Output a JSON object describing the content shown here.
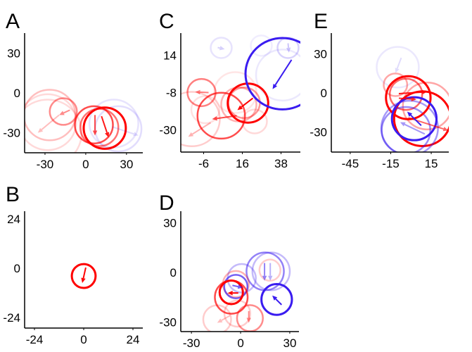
{
  "colors": {
    "red": "#ff0000",
    "blue": "#3a1cf0"
  },
  "chart_data": [
    {
      "type": "scatter",
      "label": "A",
      "xlim": [
        -45,
        42
      ],
      "ylim": [
        -45,
        45
      ],
      "xticks": [
        -30,
        0,
        30
      ],
      "yticks": [
        30,
        0,
        -30
      ],
      "circles": [
        {
          "x": -28,
          "y": -30,
          "r": 25,
          "c": "red",
          "a": 0.15
        },
        {
          "x": -26.6,
          "y": -16.6,
          "r": 19,
          "c": "red",
          "a": 0.25
        },
        {
          "x": -28,
          "y": -22,
          "r": 21,
          "c": "red",
          "a": 0.15
        },
        {
          "x": -16.5,
          "y": -14,
          "r": 10,
          "c": "red",
          "a": 0.45
        },
        {
          "x": 20.7,
          "y": -23,
          "r": 18,
          "c": "blue",
          "a": 0.12
        },
        {
          "x": 24,
          "y": -27,
          "r": 17,
          "c": "blue",
          "a": 0.15
        },
        {
          "x": 6,
          "y": -24,
          "r": 14,
          "c": "red",
          "a": 0.7
        },
        {
          "x": 10,
          "y": -26,
          "r": 14,
          "c": "red",
          "a": 0.55
        },
        {
          "x": 14,
          "y": -26.5,
          "r": 15.5,
          "c": "red",
          "a": 1
        }
      ],
      "arrows": [
        {
          "x1": 6.8,
          "y1": -16.6,
          "x2": 6.8,
          "y2": -32,
          "c": "red",
          "a": 0.7
        },
        {
          "x1": 11.6,
          "y1": -17.5,
          "x2": 16.8,
          "y2": -33.4,
          "c": "red",
          "a": 0.9
        },
        {
          "x1": -11.7,
          "y1": -12.9,
          "x2": -19.6,
          "y2": -16.6,
          "c": "red",
          "a": 0.45
        },
        {
          "x1": -19.6,
          "y1": -16.6,
          "x2": -35.3,
          "y2": -30,
          "c": "red",
          "a": 0.25
        },
        {
          "x1": 19.6,
          "y1": -25.5,
          "x2": 38.8,
          "y2": -32,
          "c": "blue",
          "a": 0.15
        }
      ]
    },
    {
      "type": "scatter",
      "label": "C",
      "xlim": [
        -19,
        49
      ],
      "ylim": [
        -43,
        27
      ],
      "xticks": [
        -6,
        16,
        38
      ],
      "yticks": [
        14,
        -8,
        -30
      ],
      "circles": [
        {
          "x": 4,
          "y": 18.3,
          "r": 6,
          "c": "blue",
          "a": 0.12
        },
        {
          "x": 26.8,
          "y": 19.6,
          "r": 6,
          "c": "blue",
          "a": 0.08
        },
        {
          "x": 42,
          "y": 18.3,
          "r": 6,
          "c": "blue",
          "a": 0.2
        },
        {
          "x": 38.8,
          "y": 2.3,
          "r": 15,
          "c": "blue",
          "a": 0.1
        },
        {
          "x": -12.8,
          "y": -23.6,
          "r": 16,
          "c": "red",
          "a": 0.2
        },
        {
          "x": -5,
          "y": -18,
          "r": 8,
          "c": "red",
          "a": 0.12
        },
        {
          "x": 12,
          "y": -8,
          "r": 12,
          "c": "red",
          "a": 0.1
        },
        {
          "x": -7.2,
          "y": -8,
          "r": 8,
          "c": "red",
          "a": 0.5
        },
        {
          "x": 23,
          "y": -25,
          "r": 7,
          "c": "red",
          "a": 0.15
        },
        {
          "x": 14,
          "y": -15,
          "r": 10,
          "c": "red",
          "a": 0.3
        },
        {
          "x": 17,
          "y": -14,
          "r": 9,
          "c": "red",
          "a": 0.4
        },
        {
          "x": 4,
          "y": -21.6,
          "r": 13.5,
          "c": "red",
          "a": 0.7
        },
        {
          "x": 19.2,
          "y": -14.2,
          "r": 11.5,
          "c": "red",
          "a": 1
        },
        {
          "x": 38.8,
          "y": 3.1,
          "r": 21,
          "c": "blue",
          "a": 1
        }
      ],
      "arrows": [
        {
          "x1": 44,
          "y1": 11.3,
          "x2": 33.2,
          "y2": -6,
          "c": "blue",
          "a": 1
        },
        {
          "x1": 42,
          "y1": 21,
          "x2": 42.5,
          "y2": 15.5,
          "c": "blue",
          "a": 0.25
        },
        {
          "x1": 2,
          "y1": 18.5,
          "x2": 6,
          "y2": 17.5,
          "c": "blue",
          "a": 0.2
        },
        {
          "x1": 22,
          "y1": -11.3,
          "x2": 13.2,
          "y2": -18.3,
          "c": "red",
          "a": 1
        },
        {
          "x1": 12.8,
          "y1": -21.6,
          "x2": -1.2,
          "y2": -23.6,
          "c": "red",
          "a": 0.7
        },
        {
          "x1": -3.2,
          "y1": -8,
          "x2": -10.8,
          "y2": -7.6,
          "c": "red",
          "a": 0.5
        },
        {
          "x1": -2,
          "y1": -25.7,
          "x2": -14.8,
          "y2": -34,
          "c": "red",
          "a": 0.3
        }
      ]
    },
    {
      "type": "scatter",
      "label": "E",
      "xlim": [
        -59,
        28
      ],
      "ylim": [
        -45.4,
        46
      ],
      "xticks": [
        -45,
        -15,
        15
      ],
      "yticks": [
        30,
        0,
        -30
      ],
      "circles": [
        {
          "x": -9.8,
          "y": 19.8,
          "r": 15.6,
          "c": "blue",
          "a": 0.1
        },
        {
          "x": -11.5,
          "y": 6.3,
          "r": 8.7,
          "c": "red",
          "a": 0.35
        },
        {
          "x": 12,
          "y": -10,
          "r": 18,
          "c": "red",
          "a": 0.35
        },
        {
          "x": -3.7,
          "y": -1,
          "r": 12,
          "c": "red",
          "a": 0.6
        },
        {
          "x": 8.5,
          "y": -19.8,
          "r": 21,
          "c": "red",
          "a": 1
        },
        {
          "x": -3.7,
          "y": -28.8,
          "r": 18,
          "c": "blue",
          "a": 0.5
        },
        {
          "x": -1,
          "y": -27,
          "r": 21,
          "c": "blue",
          "a": 0.45
        },
        {
          "x": -2,
          "y": -3.6,
          "r": 16.5,
          "c": "red",
          "a": 1
        },
        {
          "x": 2.4,
          "y": -19.8,
          "r": 16.5,
          "c": "blue",
          "a": 1
        }
      ],
      "arrows": [
        {
          "x1": -7.2,
          "y1": 27,
          "x2": -11.5,
          "y2": 15.3,
          "c": "blue",
          "a": 0.15
        },
        {
          "x1": -9,
          "y1": -0.5,
          "x2": 12,
          "y2": 0.9,
          "c": "red",
          "a": 0.9
        },
        {
          "x1": -9,
          "y1": -4,
          "x2": 4,
          "y2": -5,
          "c": "red",
          "a": 0.8
        },
        {
          "x1": -2,
          "y1": -19,
          "x2": 27.6,
          "y2": -28.8,
          "c": "red",
          "a": 0.6
        },
        {
          "x1": 7.6,
          "y1": -25,
          "x2": -2.8,
          "y2": -14.4,
          "c": "blue",
          "a": 1
        },
        {
          "x1": 10.2,
          "y1": -31.5,
          "x2": -8,
          "y2": -22.5,
          "c": "blue",
          "a": 0.45
        }
      ]
    },
    {
      "type": "scatter",
      "label": "B",
      "xlim": [
        -28.8,
        28.8
      ],
      "ylim": [
        -29.1,
        27.7
      ],
      "xticks": [
        -24,
        0,
        24
      ],
      "yticks": [
        24,
        0,
        -24
      ],
      "circles": [
        {
          "x": 0,
          "y": -3.8,
          "r": 5.8,
          "c": "red",
          "a": 1
        }
      ],
      "arrows": [
        {
          "x1": 1,
          "y1": 0.3,
          "x2": -0.7,
          "y2": -7.2,
          "c": "red",
          "a": 1
        }
      ]
    },
    {
      "type": "scatter",
      "label": "D",
      "xlim": [
        -36.5,
        35.6
      ],
      "ylim": [
        -35.7,
        37
      ],
      "xticks": [
        -30,
        0,
        30
      ],
      "yticks": [
        30,
        0,
        -30
      ],
      "circles": [
        {
          "x": -14.3,
          "y": -28.3,
          "r": 8.5,
          "c": "red",
          "a": 0.2
        },
        {
          "x": -2,
          "y": -24.8,
          "r": 7.9,
          "c": "red",
          "a": 0.2
        },
        {
          "x": 5.7,
          "y": -27.6,
          "r": 7.9,
          "c": "red",
          "a": 0.45
        },
        {
          "x": 17.9,
          "y": 1.4,
          "r": 6.4,
          "c": "red",
          "a": 0.2
        },
        {
          "x": 18.6,
          "y": 0.7,
          "r": 11.4,
          "c": "blue",
          "a": 0.3
        },
        {
          "x": 15,
          "y": 0.7,
          "r": 11.4,
          "c": "blue",
          "a": 0.55
        },
        {
          "x": 0.7,
          "y": -3.5,
          "r": 8.6,
          "c": "blue",
          "a": 0.3
        },
        {
          "x": -2.9,
          "y": -7,
          "r": 7.9,
          "c": "red",
          "a": 0.3
        },
        {
          "x": -2.9,
          "y": -8.5,
          "r": 7.1,
          "c": "blue",
          "a": 0.7
        },
        {
          "x": -5.7,
          "y": -14.9,
          "r": 10,
          "c": "red",
          "a": 0.7
        },
        {
          "x": -5.7,
          "y": -12,
          "r": 7.1,
          "c": "red",
          "a": 1
        },
        {
          "x": 22,
          "y": -16.3,
          "r": 9.3,
          "c": "blue",
          "a": 1
        }
      ],
      "arrows": [
        {
          "x1": 14.6,
          "y1": 5.7,
          "x2": 14.6,
          "y2": -5,
          "c": "blue",
          "a": 0.55
        },
        {
          "x1": 18.1,
          "y1": 5.7,
          "x2": 18.1,
          "y2": -5,
          "c": "blue",
          "a": 0.35
        },
        {
          "x1": 25,
          "y1": -19.5,
          "x2": 19.3,
          "y2": -13.9,
          "c": "blue",
          "a": 1
        },
        {
          "x1": -1.4,
          "y1": -12.4,
          "x2": -7.9,
          "y2": -12.4,
          "c": "red",
          "a": 1
        },
        {
          "x1": -5,
          "y1": -7.8,
          "x2": 1.4,
          "y2": -9.2,
          "c": "blue",
          "a": 0.7
        },
        {
          "x1": 5,
          "y1": -23.3,
          "x2": 5,
          "y2": -30.4,
          "c": "red",
          "a": 0.45
        },
        {
          "x1": -6.4,
          "y1": -26,
          "x2": -14.3,
          "y2": -30.4,
          "c": "red",
          "a": 0.25
        }
      ]
    }
  ]
}
